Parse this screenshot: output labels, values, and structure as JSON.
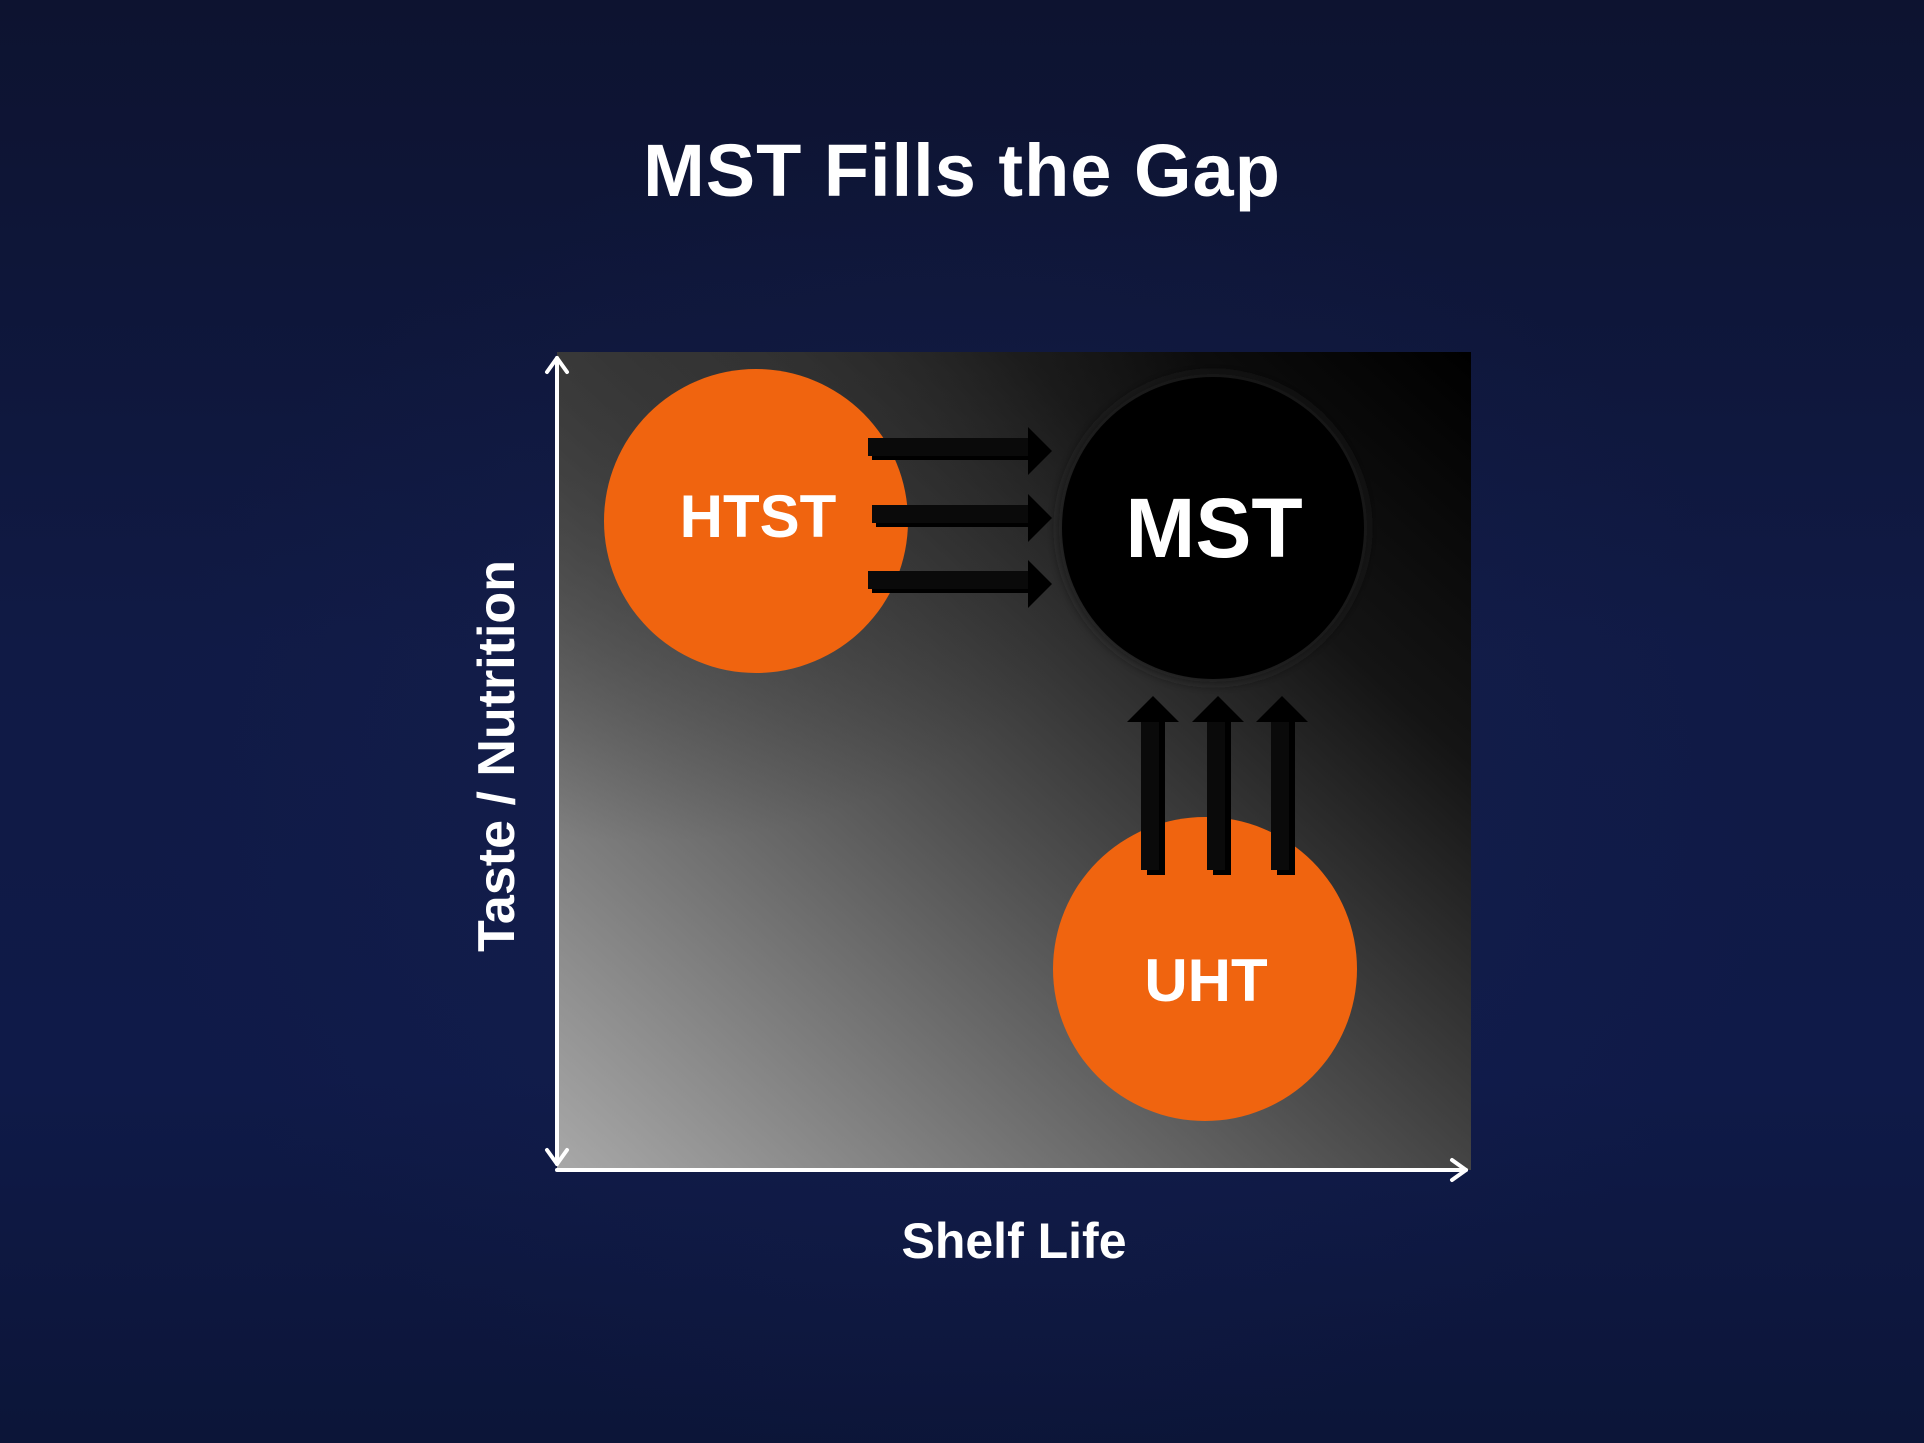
{
  "slide": {
    "title": "MST Fills the Gap"
  },
  "axes": {
    "x_label": "Shelf Life",
    "y_label": "Taste / Nutrition"
  },
  "nodes": {
    "htst": {
      "label": "HTST",
      "color": "#f0640f"
    },
    "mst": {
      "label": "MST",
      "color": "#000000"
    },
    "uht": {
      "label": "UHT",
      "color": "#f0640f"
    }
  },
  "colors": {
    "background": "#0f1a45",
    "axis": "#ffffff",
    "arrow": "#000000",
    "text": "#ffffff"
  }
}
